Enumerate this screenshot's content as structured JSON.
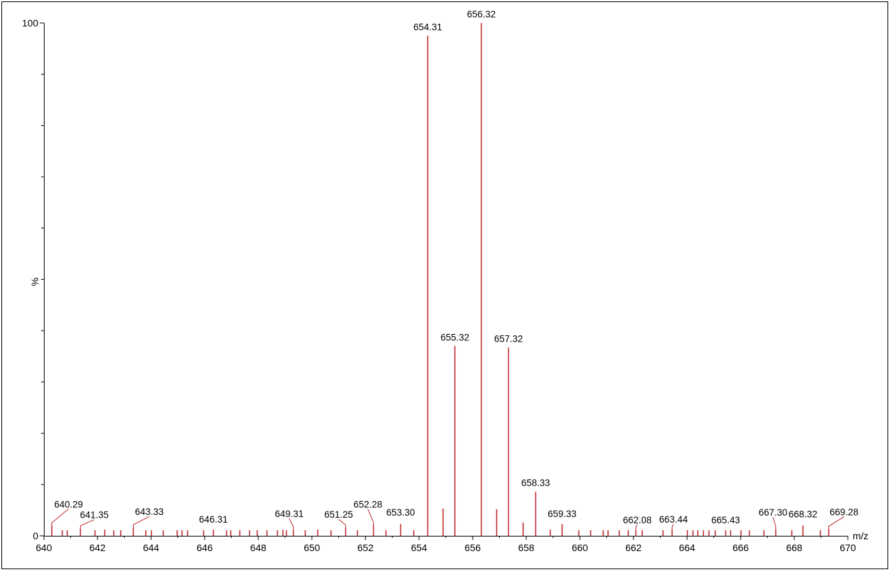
{
  "chart_data": {
    "type": "bar",
    "title": "",
    "xlabel": "m/z",
    "ylabel": "%",
    "xlim": [
      640,
      670
    ],
    "ylim": [
      0,
      100
    ],
    "x_ticks": [
      640,
      642,
      644,
      646,
      648,
      650,
      652,
      654,
      656,
      658,
      660,
      662,
      664,
      666,
      668,
      670
    ],
    "x_tick_labels": [
      "640",
      "642",
      "644",
      "646",
      "648",
      "650",
      "652",
      "654",
      "656",
      "658",
      "660",
      "662",
      "664",
      "666",
      "668",
      "670"
    ],
    "y_tick_labels": [
      {
        "value": 0,
        "label": "0"
      },
      {
        "value": 100,
        "label": "100"
      }
    ],
    "y_minor_ticks": [
      10,
      20,
      30,
      40,
      50,
      60,
      70,
      80,
      90
    ],
    "grid": false,
    "legend": "none",
    "colors": {
      "peak": "#c0282d",
      "axis": "#000000",
      "label_leader": "#c0282d"
    },
    "peaks": [
      {
        "mz": 640.29,
        "intensity": 2.0,
        "label": "640.29"
      },
      {
        "mz": 640.68,
        "intensity": 1.1
      },
      {
        "mz": 640.85,
        "intensity": 1.1
      },
      {
        "mz": 641.35,
        "intensity": 1.4,
        "label": "641.35"
      },
      {
        "mz": 641.9,
        "intensity": 1.1
      },
      {
        "mz": 642.25,
        "intensity": 1.2
      },
      {
        "mz": 642.6,
        "intensity": 1.1
      },
      {
        "mz": 642.85,
        "intensity": 1.1
      },
      {
        "mz": 643.33,
        "intensity": 1.6,
        "label": "643.33"
      },
      {
        "mz": 643.8,
        "intensity": 1.1
      },
      {
        "mz": 644.0,
        "intensity": 1.1
      },
      {
        "mz": 644.45,
        "intensity": 1.1
      },
      {
        "mz": 644.95,
        "intensity": 1.1
      },
      {
        "mz": 645.15,
        "intensity": 1.1
      },
      {
        "mz": 645.35,
        "intensity": 1.1
      },
      {
        "mz": 645.95,
        "intensity": 1.1
      },
      {
        "mz": 646.31,
        "intensity": 1.2,
        "label": "646.31"
      },
      {
        "mz": 646.8,
        "intensity": 1.1
      },
      {
        "mz": 646.95,
        "intensity": 1.1
      },
      {
        "mz": 647.3,
        "intensity": 1.1
      },
      {
        "mz": 647.65,
        "intensity": 1.1
      },
      {
        "mz": 647.95,
        "intensity": 1.1
      },
      {
        "mz": 648.3,
        "intensity": 1.1
      },
      {
        "mz": 648.7,
        "intensity": 1.1
      },
      {
        "mz": 648.9,
        "intensity": 1.2
      },
      {
        "mz": 649.05,
        "intensity": 1.1
      },
      {
        "mz": 649.31,
        "intensity": 1.2,
        "label": "649.31"
      },
      {
        "mz": 649.75,
        "intensity": 1.1
      },
      {
        "mz": 650.2,
        "intensity": 1.2
      },
      {
        "mz": 650.7,
        "intensity": 1.1
      },
      {
        "mz": 651.25,
        "intensity": 1.6,
        "label": "651.25"
      },
      {
        "mz": 651.7,
        "intensity": 1.1
      },
      {
        "mz": 652.28,
        "intensity": 2.1,
        "label": "652.28"
      },
      {
        "mz": 652.75,
        "intensity": 1.1
      },
      {
        "mz": 653.3,
        "intensity": 2.3,
        "label": "653.30"
      },
      {
        "mz": 653.78,
        "intensity": 1.1
      },
      {
        "mz": 654.31,
        "intensity": 97.5,
        "label": "654.31"
      },
      {
        "mz": 654.88,
        "intensity": 5.3
      },
      {
        "mz": 655.32,
        "intensity": 37.0,
        "label": "655.32"
      },
      {
        "mz": 656.32,
        "intensity": 100.0,
        "label": "656.32"
      },
      {
        "mz": 656.88,
        "intensity": 5.2
      },
      {
        "mz": 657.32,
        "intensity": 36.7,
        "label": "657.32"
      },
      {
        "mz": 657.88,
        "intensity": 2.6
      },
      {
        "mz": 658.33,
        "intensity": 8.6,
        "label": "658.33"
      },
      {
        "mz": 658.88,
        "intensity": 1.2
      },
      {
        "mz": 659.33,
        "intensity": 2.3,
        "label": "659.33"
      },
      {
        "mz": 659.95,
        "intensity": 1.1
      },
      {
        "mz": 660.4,
        "intensity": 1.1
      },
      {
        "mz": 660.85,
        "intensity": 1.1
      },
      {
        "mz": 661.05,
        "intensity": 1.1
      },
      {
        "mz": 661.45,
        "intensity": 1.1
      },
      {
        "mz": 661.8,
        "intensity": 1.1
      },
      {
        "mz": 662.08,
        "intensity": 1.1,
        "label": "662.08"
      },
      {
        "mz": 662.3,
        "intensity": 1.1
      },
      {
        "mz": 663.1,
        "intensity": 1.1
      },
      {
        "mz": 663.44,
        "intensity": 1.2,
        "label": "663.44"
      },
      {
        "mz": 664.0,
        "intensity": 1.1
      },
      {
        "mz": 664.2,
        "intensity": 1.1
      },
      {
        "mz": 664.4,
        "intensity": 1.1
      },
      {
        "mz": 664.6,
        "intensity": 1.1
      },
      {
        "mz": 664.8,
        "intensity": 1.1
      },
      {
        "mz": 665.05,
        "intensity": 1.1
      },
      {
        "mz": 665.43,
        "intensity": 1.1,
        "label": "665.43"
      },
      {
        "mz": 665.6,
        "intensity": 1.1
      },
      {
        "mz": 666.0,
        "intensity": 1.1
      },
      {
        "mz": 666.3,
        "intensity": 1.1
      },
      {
        "mz": 666.85,
        "intensity": 1.1
      },
      {
        "mz": 667.3,
        "intensity": 1.2,
        "label": "667.30"
      },
      {
        "mz": 667.9,
        "intensity": 1.1
      },
      {
        "mz": 668.32,
        "intensity": 2.0,
        "label": "668.32"
      },
      {
        "mz": 668.95,
        "intensity": 1.1
      },
      {
        "mz": 669.28,
        "intensity": 1.3,
        "label": "669.28"
      }
    ],
    "label_placements": {
      "640.29": {
        "dx": 24,
        "dy": -26
      },
      "641.35": {
        "dx": 20,
        "dy": -15
      },
      "643.33": {
        "dx": 23,
        "dy": -18
      },
      "646.31": {
        "dx": 0,
        "dy": -10
      },
      "649.31": {
        "dx": -6,
        "dy": -18
      },
      "651.25": {
        "dx": -10,
        "dy": -14
      },
      "652.28": {
        "dx": -8,
        "dy": -25
      },
      "653.30": {
        "dx": 0,
        "dy": -12
      },
      "654.31": {
        "dx": 0,
        "dy": -8
      },
      "655.32": {
        "dx": 0,
        "dy": -8
      },
      "656.32": {
        "dx": 0,
        "dy": -8
      },
      "657.32": {
        "dx": 0,
        "dy": -8
      },
      "658.33": {
        "dx": 0,
        "dy": -8
      },
      "659.33": {
        "dx": 0,
        "dy": -10
      },
      "662.08": {
        "dx": 2,
        "dy": -10
      },
      "663.44": {
        "dx": 2,
        "dy": -10
      },
      "665.43": {
        "dx": 0,
        "dy": -10
      },
      "667.30": {
        "dx": -4,
        "dy": -20
      },
      "668.32": {
        "dx": 0,
        "dy": -12
      },
      "669.28": {
        "dx": 22,
        "dy": -20
      }
    }
  }
}
